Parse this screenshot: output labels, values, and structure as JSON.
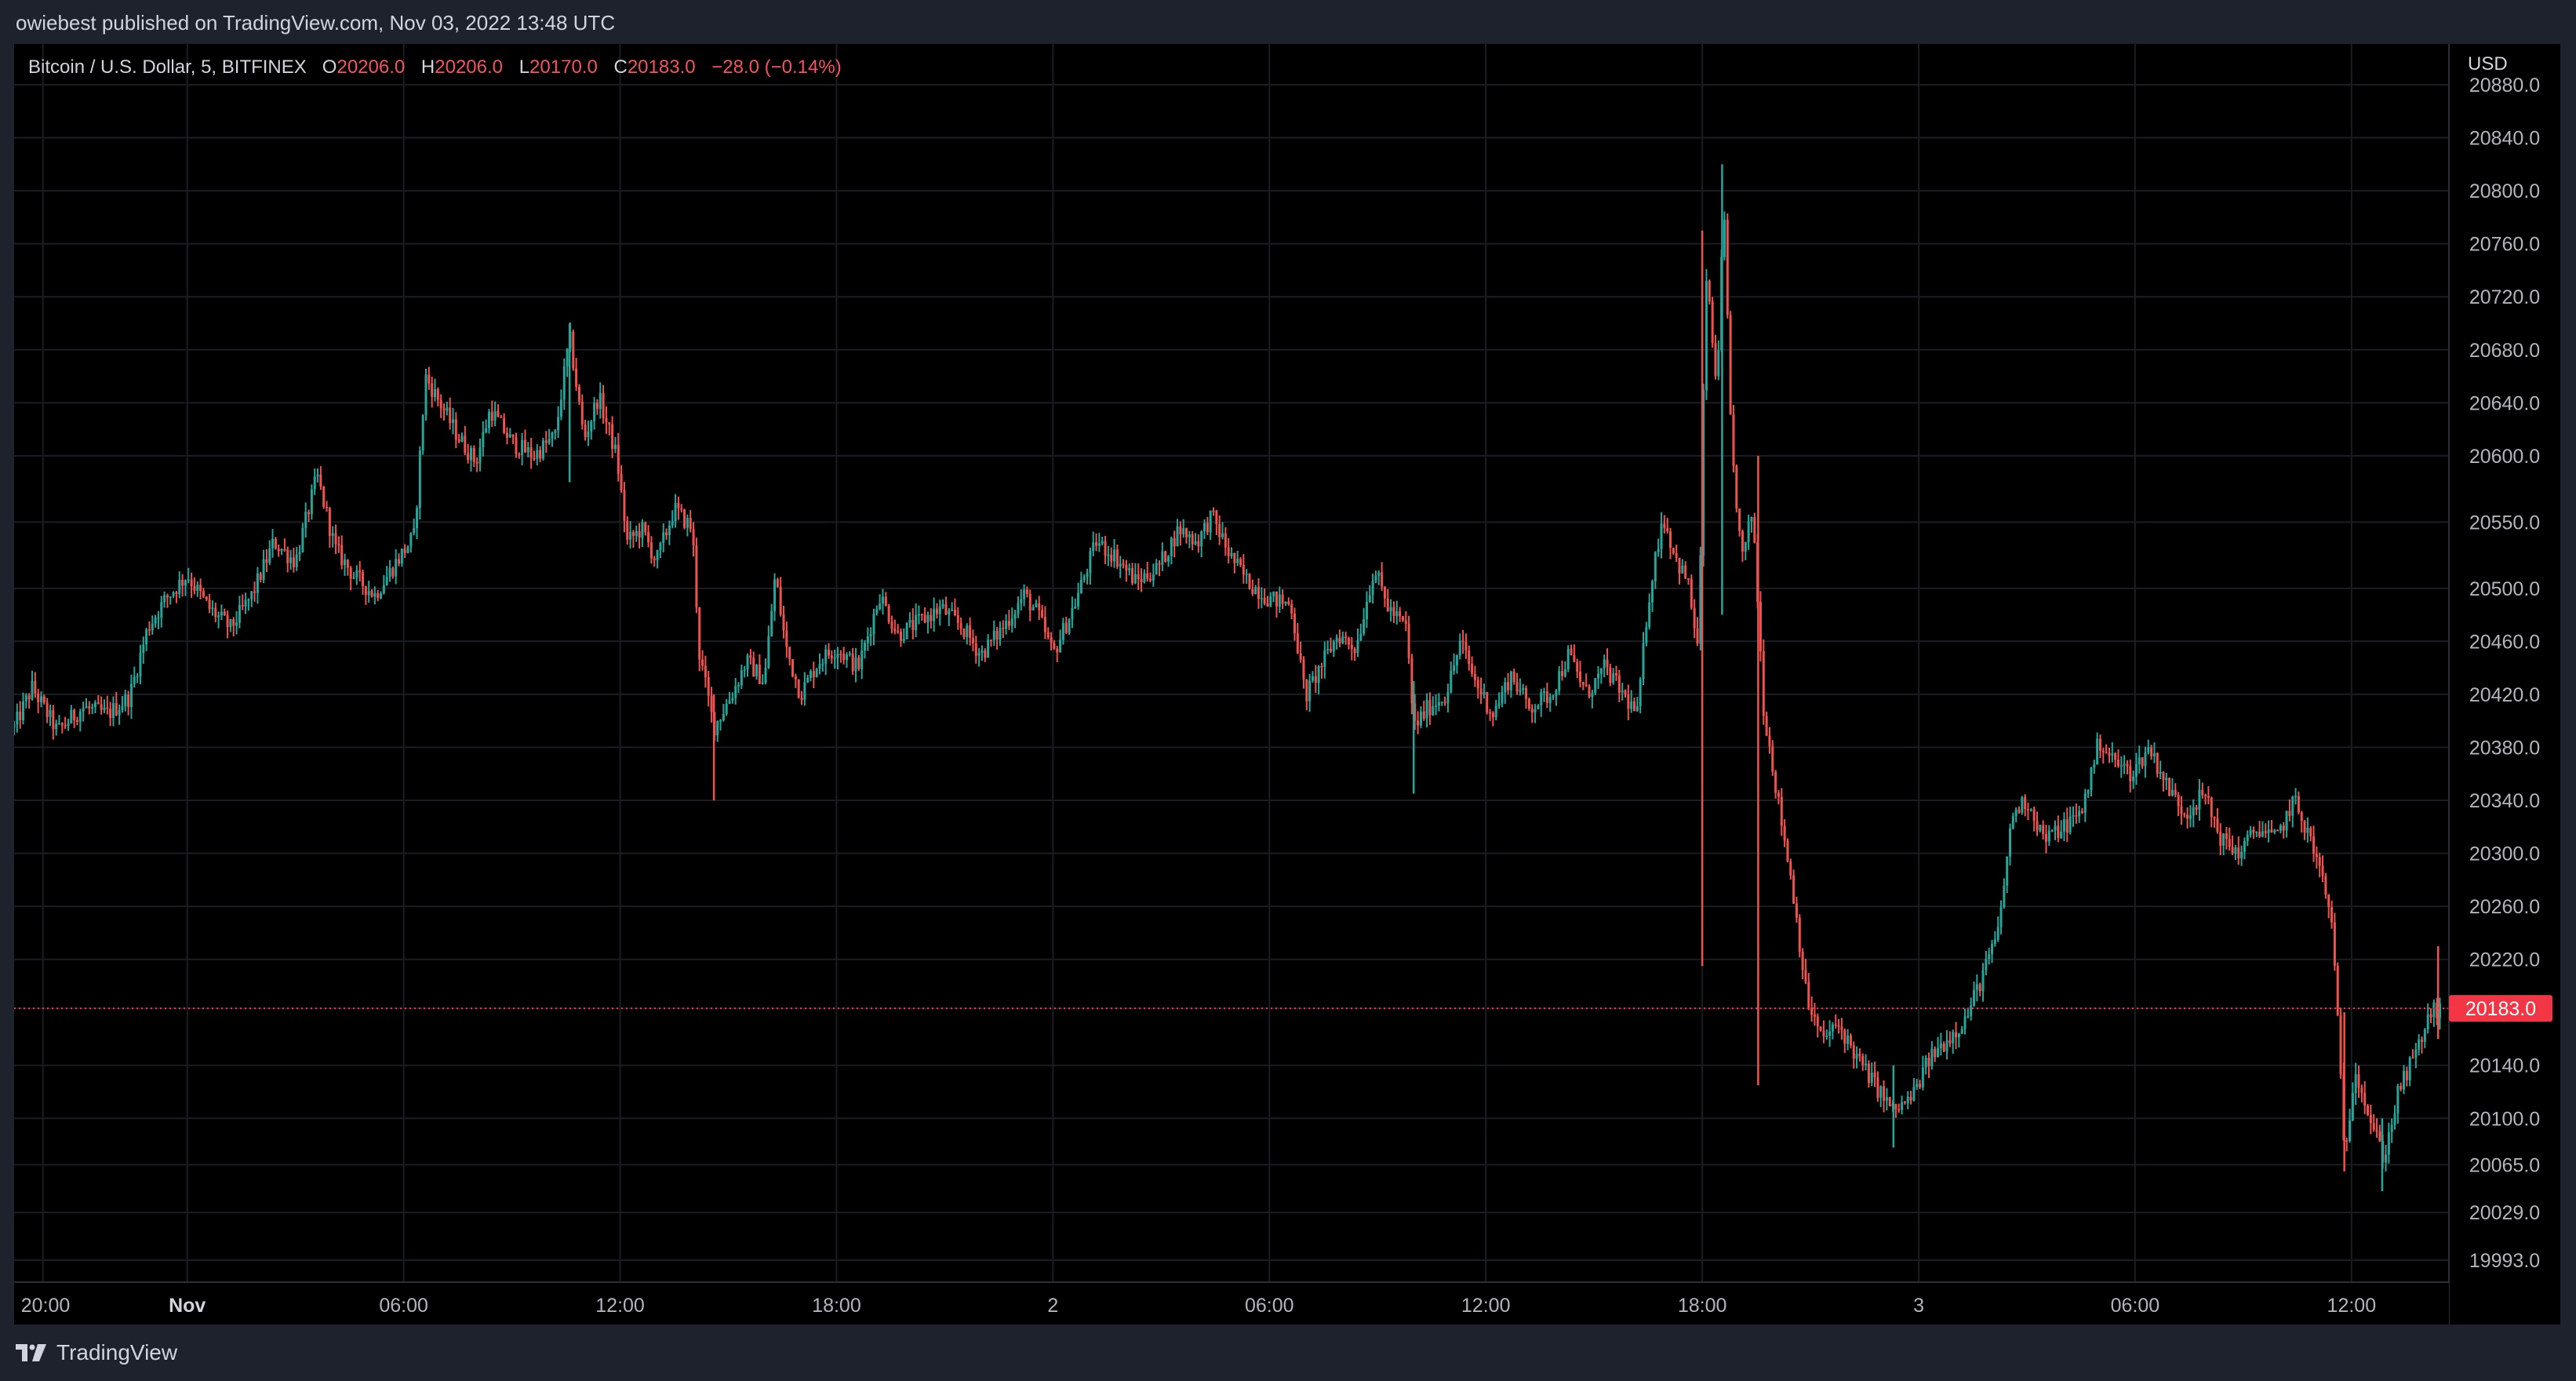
{
  "header": {
    "publish_line": "owiebest published on TradingView.com, Nov 03, 2022 13:48 UTC"
  },
  "legend": {
    "symbol": "Bitcoin / U.S. Dollar, 5, BITFINEX",
    "open_label": "O",
    "open": "20206.0",
    "high_label": "H",
    "high": "20206.0",
    "low_label": "L",
    "low": "20170.0",
    "close_label": "C",
    "close": "20183.0",
    "change": "−28.0 (−0.14%)"
  },
  "price_axis": {
    "currency": "USD"
  },
  "footer": {
    "brand": "TradingView"
  },
  "colors": {
    "up": "#26a69a",
    "down": "#ef5350",
    "background": "#000000",
    "last_price": "#f23645"
  },
  "chart_data": {
    "type": "candlestick",
    "title": "Bitcoin / U.S. Dollar, 5, BITFINEX",
    "timeframe_minutes": 5,
    "last_price": 20183.0,
    "last_price_label": "20183.0",
    "y_ticks": [
      19993,
      20029,
      20065,
      20100,
      20140,
      20183,
      20220,
      20260,
      20300,
      20340,
      20380,
      20420,
      20460,
      20500,
      20550,
      20600,
      20640,
      20680,
      20720,
      20760,
      20800,
      20840,
      20880
    ],
    "y_tick_labels": [
      "19993.0",
      "20029.0",
      "20065.0",
      "20100.0",
      "20140.0",
      "20183.0",
      "20220.0",
      "20260.0",
      "20300.0",
      "20340.0",
      "20380.0",
      "20420.0",
      "20460.0",
      "20500.0",
      "20550.0",
      "20600.0",
      "20640.0",
      "20680.0",
      "20720.0",
      "20760.0",
      "20800.0",
      "20840.0",
      "20880.0"
    ],
    "x_ticks": [
      {
        "t": 0,
        "label": "20:00",
        "bold": false
      },
      {
        "t": 4,
        "label": "Nov",
        "bold": true
      },
      {
        "t": 10,
        "label": "06:00",
        "bold": false
      },
      {
        "t": 16,
        "label": "12:00",
        "bold": false
      },
      {
        "t": 22,
        "label": "18:00",
        "bold": false
      },
      {
        "t": 28,
        "label": "2",
        "bold": false
      },
      {
        "t": 34,
        "label": "06:00",
        "bold": false
      },
      {
        "t": 40,
        "label": "12:00",
        "bold": false
      },
      {
        "t": 46,
        "label": "18:00",
        "bold": false
      },
      {
        "t": 52,
        "label": "3",
        "bold": false
      },
      {
        "t": 58,
        "label": "06:00",
        "bold": false
      },
      {
        "t": 64,
        "label": "12:00",
        "bold": false
      }
    ],
    "x_range_hours": [
      -0.8,
      66.7
    ],
    "grid": true,
    "price_path": [
      [
        -0.8,
        20395
      ],
      [
        -0.3,
        20425
      ],
      [
        0.4,
        20392
      ],
      [
        1.1,
        20410
      ],
      [
        1.8,
        20405
      ],
      [
        2.4,
        20418
      ],
      [
        2.9,
        20470
      ],
      [
        3.4,
        20492
      ],
      [
        4.0,
        20510
      ],
      [
        4.6,
        20485
      ],
      [
        5.2,
        20470
      ],
      [
        5.8,
        20495
      ],
      [
        6.4,
        20535
      ],
      [
        7.0,
        20520
      ],
      [
        7.6,
        20585
      ],
      [
        8.1,
        20530
      ],
      [
        8.6,
        20510
      ],
      [
        9.2,
        20495
      ],
      [
        9.8,
        20520
      ],
      [
        10.3,
        20540
      ],
      [
        10.6,
        20660
      ],
      [
        11.0,
        20640
      ],
      [
        11.5,
        20615
      ],
      [
        12.0,
        20595
      ],
      [
        12.4,
        20635
      ],
      [
        13.0,
        20610
      ],
      [
        13.6,
        20600
      ],
      [
        14.2,
        20615
      ],
      [
        14.6,
        20690
      ],
      [
        15.0,
        20612
      ],
      [
        15.4,
        20645
      ],
      [
        15.9,
        20600
      ],
      [
        16.2,
        20535
      ],
      [
        16.6,
        20545
      ],
      [
        17.0,
        20520
      ],
      [
        17.5,
        20560
      ],
      [
        18.0,
        20545
      ],
      [
        18.2,
        20450
      ],
      [
        18.6,
        20395
      ],
      [
        19.1,
        20420
      ],
      [
        19.5,
        20445
      ],
      [
        20.0,
        20430
      ],
      [
        20.3,
        20510
      ],
      [
        20.6,
        20455
      ],
      [
        21.0,
        20420
      ],
      [
        21.5,
        20445
      ],
      [
        22.0,
        20455
      ],
      [
        22.6,
        20440
      ],
      [
        23.2,
        20495
      ],
      [
        23.7,
        20465
      ],
      [
        24.3,
        20475
      ],
      [
        24.9,
        20485
      ],
      [
        25.5,
        20470
      ],
      [
        26.0,
        20450
      ],
      [
        26.6,
        20470
      ],
      [
        27.2,
        20495
      ],
      [
        27.6,
        20480
      ],
      [
        28.0,
        20450
      ],
      [
        28.6,
        20488
      ],
      [
        29.2,
        20535
      ],
      [
        29.7,
        20525
      ],
      [
        30.3,
        20505
      ],
      [
        30.9,
        20515
      ],
      [
        31.5,
        20545
      ],
      [
        32.0,
        20535
      ],
      [
        32.4,
        20555
      ],
      [
        32.9,
        20525
      ],
      [
        33.4,
        20505
      ],
      [
        34.0,
        20492
      ],
      [
        34.6,
        20488
      ],
      [
        35.0,
        20418
      ],
      [
        35.4,
        20440
      ],
      [
        35.9,
        20465
      ],
      [
        36.4,
        20455
      ],
      [
        36.9,
        20515
      ],
      [
        37.3,
        20485
      ],
      [
        37.8,
        20470
      ],
      [
        38.0,
        20395
      ],
      [
        38.4,
        20410
      ],
      [
        38.9,
        20420
      ],
      [
        39.3,
        20460
      ],
      [
        39.7,
        20430
      ],
      [
        40.2,
        20405
      ],
      [
        40.7,
        20435
      ],
      [
        41.2,
        20410
      ],
      [
        41.8,
        20420
      ],
      [
        42.3,
        20450
      ],
      [
        42.8,
        20420
      ],
      [
        43.3,
        20440
      ],
      [
        43.8,
        20420
      ],
      [
        44.2,
        20405
      ],
      [
        44.5,
        20490
      ],
      [
        44.9,
        20555
      ],
      [
        45.3,
        20520
      ],
      [
        45.6,
        20505
      ],
      [
        45.9,
        20450
      ],
      [
        46.1,
        20740
      ],
      [
        46.4,
        20650
      ],
      [
        46.6,
        20790
      ],
      [
        46.8,
        20610
      ],
      [
        47.1,
        20520
      ],
      [
        47.4,
        20560
      ],
      [
        47.7,
        20410
      ],
      [
        48.1,
        20340
      ],
      [
        48.5,
        20275
      ],
      [
        48.9,
        20190
      ],
      [
        49.3,
        20160
      ],
      [
        49.8,
        20170
      ],
      [
        50.3,
        20145
      ],
      [
        50.8,
        20125
      ],
      [
        51.3,
        20105
      ],
      [
        51.8,
        20115
      ],
      [
        52.3,
        20145
      ],
      [
        52.8,
        20160
      ],
      [
        53.3,
        20175
      ],
      [
        53.8,
        20210
      ],
      [
        54.2,
        20240
      ],
      [
        54.6,
        20330
      ],
      [
        55.0,
        20340
      ],
      [
        55.5,
        20310
      ],
      [
        56.0,
        20320
      ],
      [
        56.5,
        20330
      ],
      [
        57.0,
        20385
      ],
      [
        57.4,
        20370
      ],
      [
        57.9,
        20360
      ],
      [
        58.4,
        20380
      ],
      [
        58.9,
        20350
      ],
      [
        59.4,
        20330
      ],
      [
        59.9,
        20345
      ],
      [
        60.4,
        20310
      ],
      [
        60.9,
        20300
      ],
      [
        61.4,
        20320
      ],
      [
        61.9,
        20310
      ],
      [
        62.4,
        20340
      ],
      [
        62.8,
        20315
      ],
      [
        63.2,
        20280
      ],
      [
        63.5,
        20240
      ],
      [
        63.8,
        20070
      ],
      [
        64.1,
        20140
      ],
      [
        64.5,
        20100
      ],
      [
        64.9,
        20070
      ],
      [
        65.3,
        20120
      ],
      [
        65.8,
        20150
      ],
      [
        66.2,
        20180
      ],
      [
        66.5,
        20183
      ]
    ],
    "spikes": [
      {
        "t": 14.6,
        "high": 20700,
        "low": 20580
      },
      {
        "t": 18.6,
        "high": 20420,
        "low": 20340
      },
      {
        "t": 38.0,
        "high": 20430,
        "low": 20345
      },
      {
        "t": 46.0,
        "high": 20770,
        "low": 20215
      },
      {
        "t": 46.55,
        "high": 20820,
        "low": 20480
      },
      {
        "t": 47.55,
        "high": 20600,
        "low": 20125
      },
      {
        "t": 51.3,
        "high": 20140,
        "low": 20078
      },
      {
        "t": 63.8,
        "high": 20180,
        "low": 20060
      },
      {
        "t": 64.85,
        "high": 20100,
        "low": 20045
      },
      {
        "t": 66.4,
        "high": 20230,
        "low": 20160
      }
    ]
  }
}
